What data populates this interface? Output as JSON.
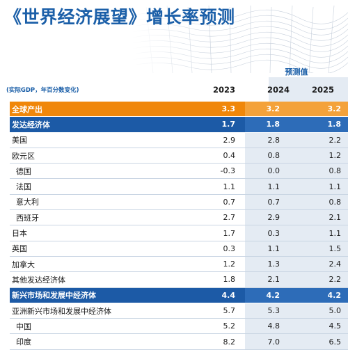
{
  "title": "《世界经济展望》增长率预测",
  "forecast_label": "预测值",
  "unit_note": "(实际GDP，年百分数变化)",
  "years": [
    "2023",
    "2024",
    "2025"
  ],
  "rows": [
    {
      "label": "全球产出",
      "v2023": "3.3",
      "v2024": "3.2",
      "v2025": "3.2"
    },
    {
      "label": "发达经济体",
      "v2023": "1.7",
      "v2024": "1.8",
      "v2025": "1.8"
    },
    {
      "label": "美国",
      "v2023": "2.9",
      "v2024": "2.8",
      "v2025": "2.2"
    },
    {
      "label": "欧元区",
      "v2023": "0.4",
      "v2024": "0.8",
      "v2025": "1.2"
    },
    {
      "label": "德国",
      "v2023": "-0.3",
      "v2024": "0.0",
      "v2025": "0.8"
    },
    {
      "label": "法国",
      "v2023": "1.1",
      "v2024": "1.1",
      "v2025": "1.1"
    },
    {
      "label": "意大利",
      "v2023": "0.7",
      "v2024": "0.7",
      "v2025": "0.8"
    },
    {
      "label": "西班牙",
      "v2023": "2.7",
      "v2024": "2.9",
      "v2025": "2.1"
    },
    {
      "label": "日本",
      "v2023": "1.7",
      "v2024": "0.3",
      "v2025": "1.1"
    },
    {
      "label": "英国",
      "v2023": "0.3",
      "v2024": "1.1",
      "v2025": "1.5"
    },
    {
      "label": "加拿大",
      "v2023": "1.2",
      "v2024": "1.3",
      "v2025": "2.4"
    },
    {
      "label": "其他发达经济体",
      "v2023": "1.8",
      "v2024": "2.1",
      "v2025": "2.2"
    },
    {
      "label": "新兴市场和发展中经济体",
      "v2023": "4.4",
      "v2024": "4.2",
      "v2025": "4.2"
    },
    {
      "label": "亚洲新兴市场和发展中经济体",
      "v2023": "5.7",
      "v2024": "5.3",
      "v2025": "5.0"
    },
    {
      "label": "中国",
      "v2023": "5.2",
      "v2024": "4.8",
      "v2025": "4.5"
    },
    {
      "label": "印度",
      "v2023": "8.2",
      "v2024": "7.0",
      "v2025": "6.5"
    }
  ]
}
